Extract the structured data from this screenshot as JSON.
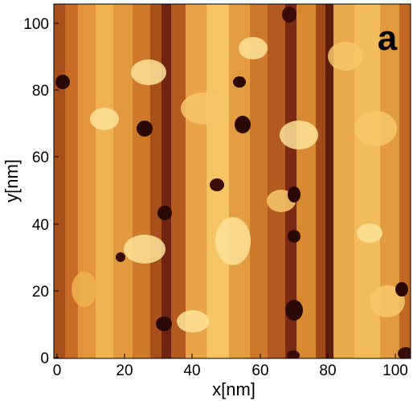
{
  "image": {
    "kind": "scanning-probe topography map",
    "colormap": [
      "#3a0c06",
      "#6e2410",
      "#a8501c",
      "#d4822e",
      "#eba548",
      "#f7c86a",
      "#fde39a"
    ],
    "panel_label": "a",
    "x_axis": {
      "title": "x[nm]",
      "range": [
        0,
        104
      ],
      "ticks": [
        "0",
        "20",
        "40",
        "60",
        "80",
        "100"
      ]
    },
    "y_axis": {
      "title": "y[nm]",
      "range": [
        0,
        104
      ],
      "ticks": [
        "0",
        "20",
        "40",
        "60",
        "80",
        "100"
      ]
    }
  }
}
